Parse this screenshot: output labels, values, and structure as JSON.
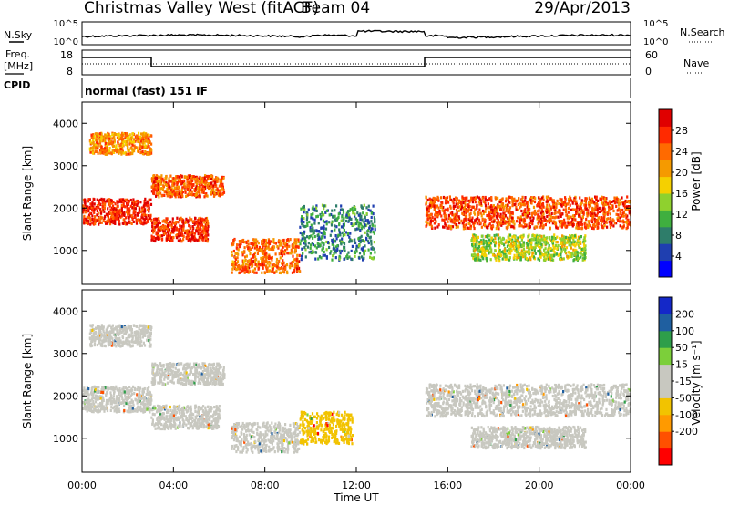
{
  "header": {
    "station": "Christmas Valley West (fitACF)",
    "beam": "Beam 04",
    "date": "29/Apr/2013"
  },
  "status_panel": {
    "nsky_label": "N.Sky",
    "nsearch_label": "N.Search",
    "noise_ticks": [
      "10^5",
      "10^0"
    ],
    "freq_label": "Freq.",
    "freq_unit": "[MHz]",
    "freq_ticks": [
      "18",
      "8"
    ],
    "nave_label": "Nave",
    "nave_ticks": [
      "60",
      "0"
    ],
    "cpid_label": "CPID",
    "mode_text": "normal (fast) 151 IF"
  },
  "palettes": {
    "power": [
      "#0000ff",
      "#1f3fb0",
      "#2e7d6a",
      "#3faf3f",
      "#8fd12e",
      "#f5d000",
      "#f59a00",
      "#ff6a00",
      "#ff2a00",
      "#e00000"
    ],
    "velocity": [
      "#ff0000",
      "#ff5000",
      "#ff9a00",
      "#f2c300",
      "#c8c8c0",
      "#c8c8c0",
      "#7ccf3a",
      "#2e9e4a",
      "#1f5fa0",
      "#1428c8"
    ]
  },
  "chart_data": [
    {
      "type": "heatmap",
      "panel": "power",
      "ylabel": "Slant Range [km]",
      "xlim": [
        "00:00",
        "24:00"
      ],
      "ylim": [
        200,
        4500
      ],
      "yticks": [
        "1000",
        "2000",
        "3000",
        "4000"
      ],
      "colorbar": {
        "label": "Power [dB]",
        "ticks": [
          "4",
          "8",
          "12",
          "16",
          "20",
          "24",
          "28"
        ],
        "range": [
          0,
          32
        ]
      },
      "bands": [
        {
          "t": [
            0.0,
            3.0
          ],
          "r": [
            1650,
            2250
          ],
          "z": 28
        },
        {
          "t": [
            3.0,
            5.5
          ],
          "r": [
            1250,
            1800
          ],
          "z": 27
        },
        {
          "t": [
            0.3,
            3.0
          ],
          "r": [
            3300,
            3800
          ],
          "z": 22
        },
        {
          "t": [
            3.0,
            6.2
          ],
          "r": [
            2300,
            2800
          ],
          "z": 25
        },
        {
          "t": [
            6.5,
            9.5
          ],
          "r": [
            500,
            1300
          ],
          "z": 24
        },
        {
          "t": [
            9.5,
            12.8
          ],
          "r": [
            800,
            2100
          ],
          "z": 9
        },
        {
          "t": [
            15.0,
            24.0
          ],
          "r": [
            1550,
            2300
          ],
          "z": 26
        },
        {
          "t": [
            17.0,
            22.0
          ],
          "r": [
            800,
            1400
          ],
          "z": 15
        }
      ]
    },
    {
      "type": "heatmap",
      "panel": "velocity",
      "xlabel": "Time UT",
      "ylabel": "Slant Range [km]",
      "xlim": [
        "00:00",
        "24:00"
      ],
      "ylim": [
        200,
        4500
      ],
      "xticks": [
        "00:00",
        "04:00",
        "08:00",
        "12:00",
        "16:00",
        "20:00",
        "00:00"
      ],
      "yticks": [
        "1000",
        "2000",
        "3000",
        "4000"
      ],
      "colorbar": {
        "label": "Velocity [m s⁻¹]",
        "ticks": [
          "200",
          "100",
          "50",
          "15",
          "-15",
          "-50",
          "-100",
          "-200"
        ],
        "range": [
          -250,
          250
        ]
      },
      "bands": [
        {
          "t": [
            0.0,
            3.0
          ],
          "r": [
            1650,
            2250
          ],
          "z": 0
        },
        {
          "t": [
            3.0,
            6.0
          ],
          "r": [
            1250,
            1800
          ],
          "z": 0
        },
        {
          "t": [
            0.3,
            3.0
          ],
          "r": [
            3200,
            3700
          ],
          "z": 0
        },
        {
          "t": [
            3.0,
            6.2
          ],
          "r": [
            2300,
            2800
          ],
          "z": 0
        },
        {
          "t": [
            6.5,
            9.5
          ],
          "r": [
            700,
            1400
          ],
          "z": 0
        },
        {
          "t": [
            9.5,
            11.8
          ],
          "r": [
            900,
            1650
          ],
          "z": -70
        },
        {
          "t": [
            15.0,
            24.0
          ],
          "r": [
            1550,
            2300
          ],
          "z": 0
        },
        {
          "t": [
            17.0,
            22.0
          ],
          "r": [
            800,
            1300
          ],
          "z": 0
        }
      ]
    }
  ]
}
